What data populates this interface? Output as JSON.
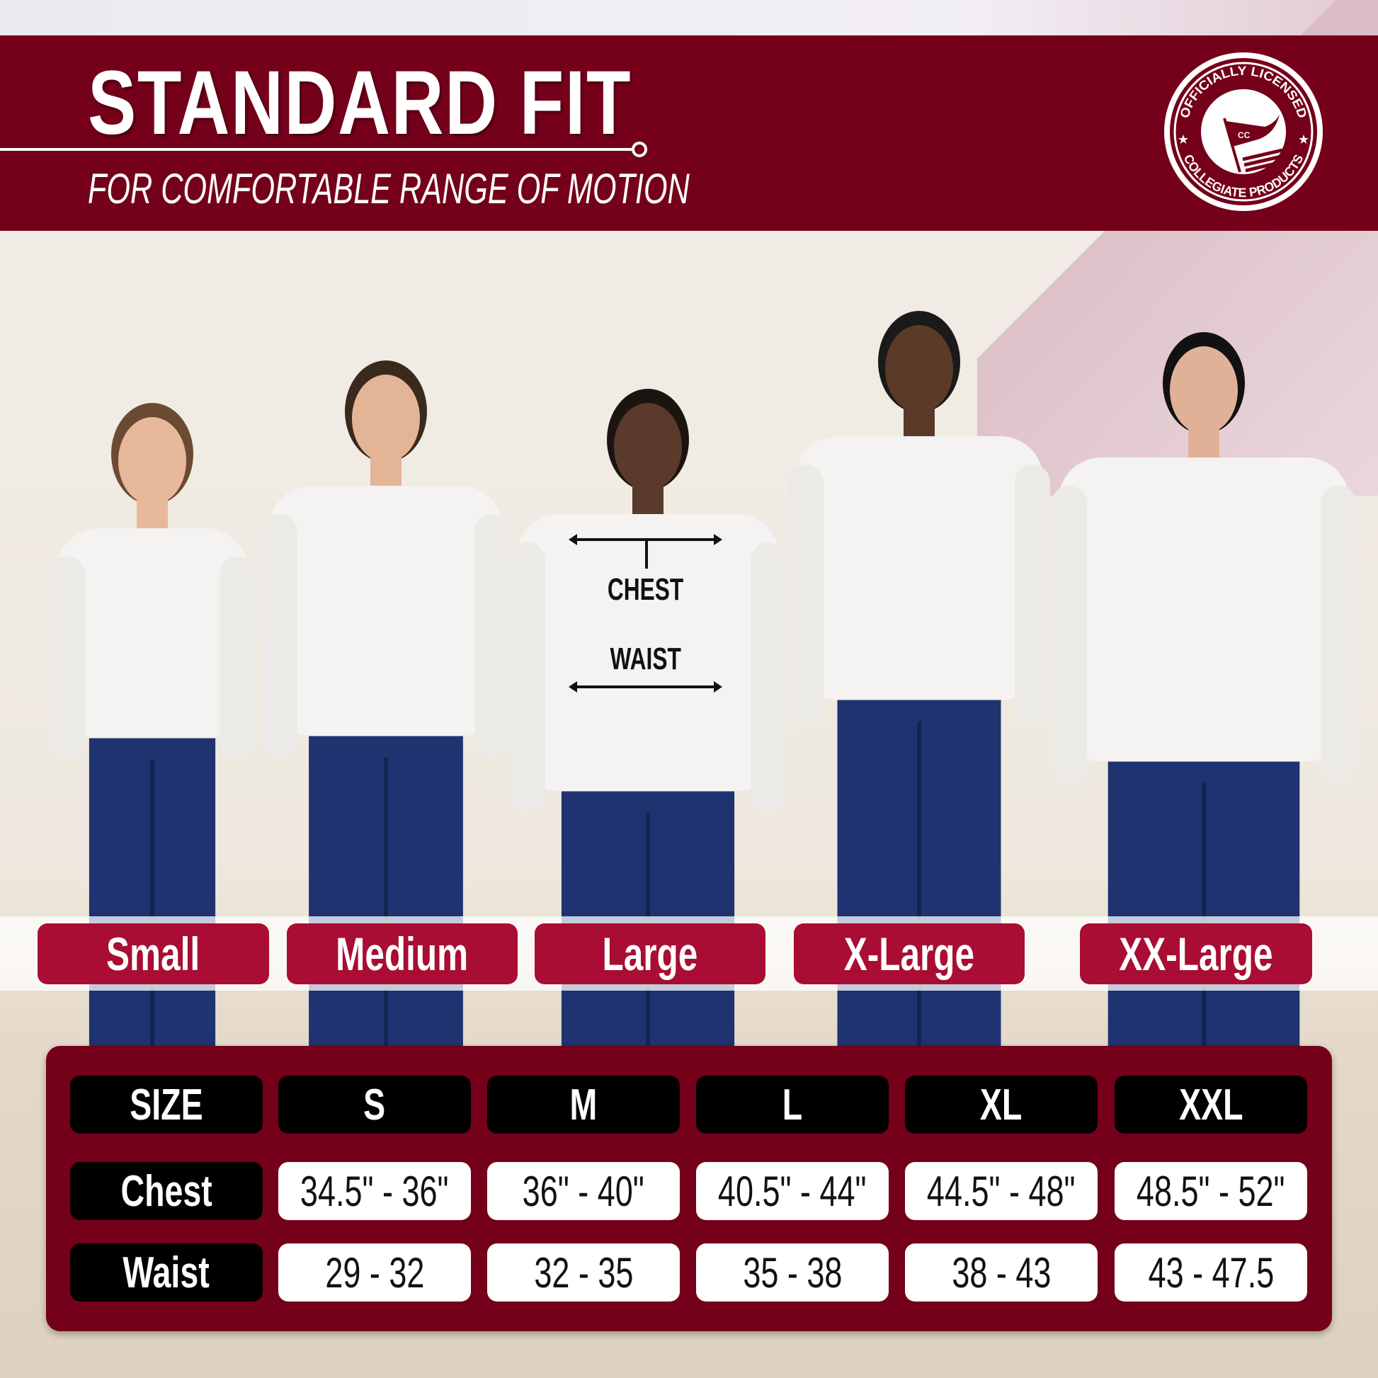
{
  "header": {
    "title": "STANDARD FIT",
    "subtitle": "FOR COMFORTABLE RANGE OF MOTION"
  },
  "logo": {
    "top_text": "OFFICIALLY LICENSED",
    "bottom_text": "COLLEGIATE PRODUCTS",
    "flag_text": "CC"
  },
  "annotations": {
    "chest": "CHEST",
    "waist": "WAIST"
  },
  "size_labels": [
    "Small",
    "Medium",
    "Large",
    "X-Large",
    "XX-Large"
  ],
  "size_table": {
    "header": [
      "SIZE",
      "S",
      "M",
      "L",
      "XL",
      "XXL"
    ],
    "rows": [
      {
        "label": "Chest",
        "values": [
          "34.5\" - 36\"",
          "36\" - 40\"",
          "40.5\" - 44\"",
          "44.5\" - 48\"",
          "48.5\" - 52\""
        ]
      },
      {
        "label": "Waist",
        "values": [
          "29 - 32",
          "32 - 35",
          "35 - 38",
          "38 - 43",
          "43 - 47.5"
        ]
      }
    ]
  },
  "colors": {
    "banner": "#74001a",
    "pill": "#a90d33",
    "header_cell": "#000000",
    "value_cell": "#ffffff"
  }
}
